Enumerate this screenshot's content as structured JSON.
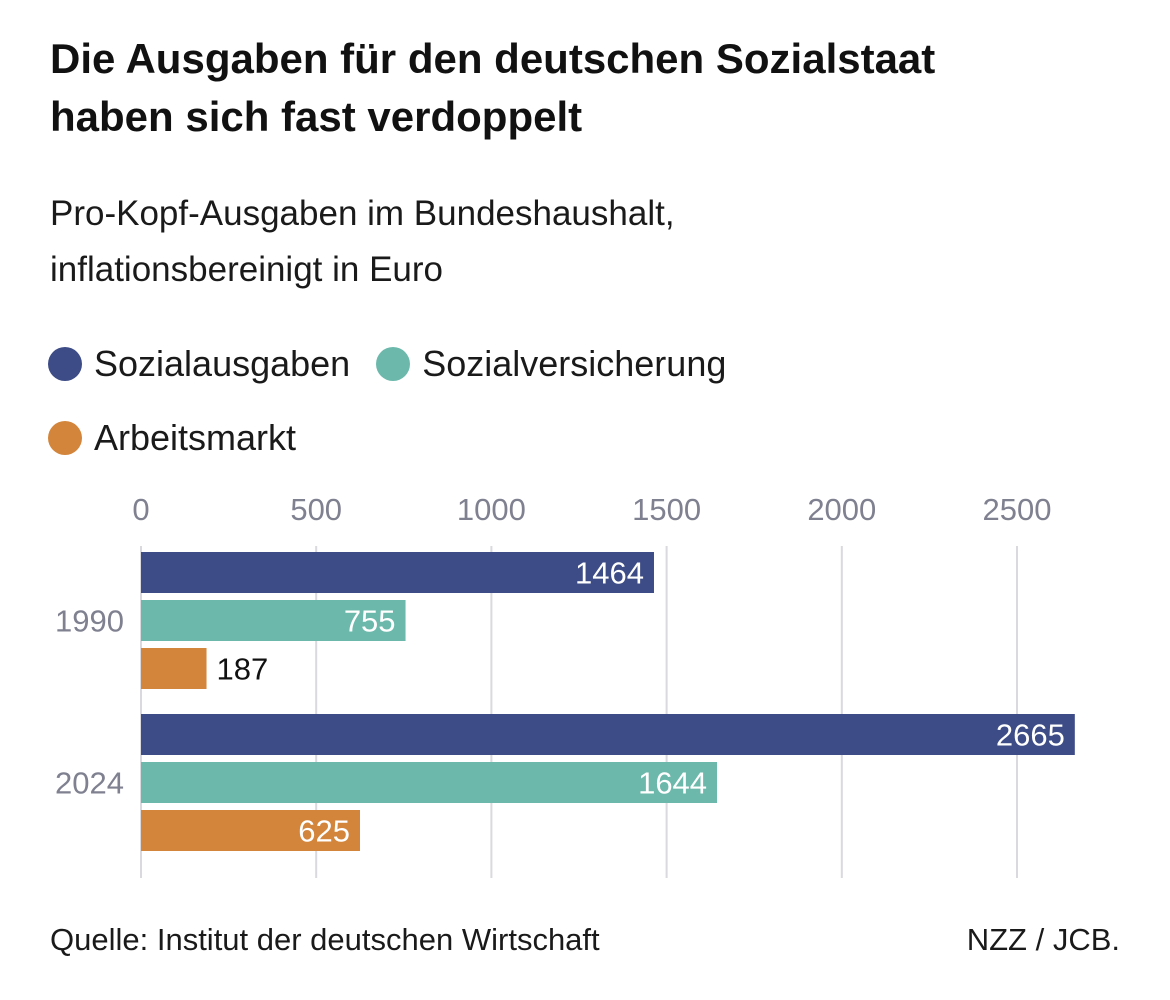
{
  "chart_data": {
    "type": "bar",
    "orientation": "horizontal",
    "title": "Die Ausgaben für den deutschen Sozialstaat haben sich fast verdoppelt",
    "title_lines": [
      "Die Ausgaben für den deutschen Sozialstaat",
      "haben sich fast verdoppelt"
    ],
    "subtitle": "Pro-Kopf-Ausgaben im Bundeshaushalt, inflationsbereinigt in Euro",
    "subtitle_lines": [
      "Pro-Kopf-Ausgaben im Bundeshaushalt,",
      "inflationsbereinigt in Euro"
    ],
    "categories": [
      "1990",
      "2024"
    ],
    "series": [
      {
        "name": "Sozialausgaben",
        "color": "#3d4c86",
        "values": [
          1464,
          2665
        ]
      },
      {
        "name": "Sozialversicherung",
        "color": "#6cb9ac",
        "values": [
          755,
          1644
        ]
      },
      {
        "name": "Arbeitsmarkt",
        "color": "#d3853b",
        "values": [
          187,
          625
        ]
      }
    ],
    "xlim": [
      0,
      2700
    ],
    "xticks": [
      0,
      500,
      1000,
      1500,
      2000,
      2500
    ],
    "xtick_labels": [
      "0",
      "500",
      "1000",
      "1500",
      "2000",
      "2500"
    ],
    "xlabel": "",
    "ylabel": "",
    "grid": true,
    "legend_position": "top-left"
  },
  "footer": {
    "source": "Quelle: Institut der deutschen Wirtschaft",
    "credit": "NZZ / JCB."
  }
}
